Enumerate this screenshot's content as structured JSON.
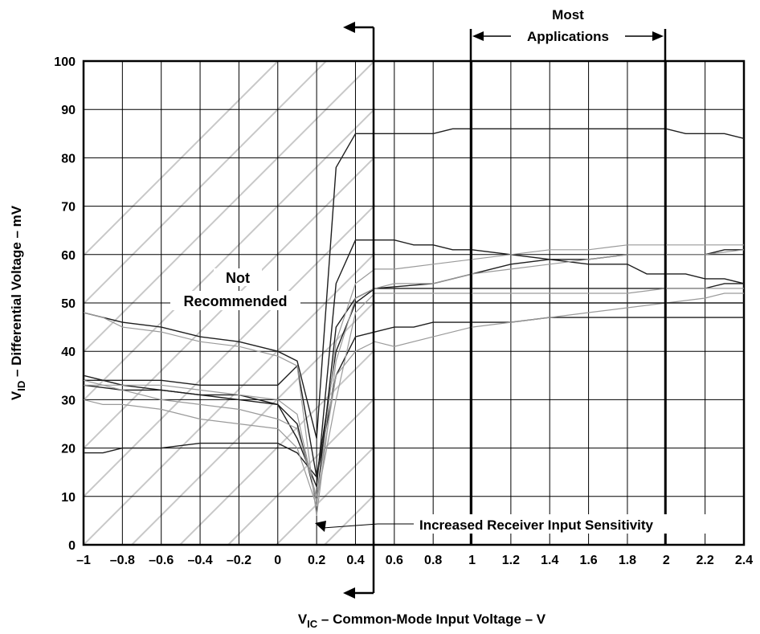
{
  "chart_data": {
    "type": "line",
    "xlabel": {
      "main": "V",
      "sub": "IC",
      "rest": " – Common-Mode Input Voltage – V"
    },
    "ylabel": {
      "main": "V",
      "sub": "ID",
      "rest": " – Differential Voltage – mV"
    },
    "xlim": [
      -1,
      2.4
    ],
    "ylim": [
      0,
      100
    ],
    "x_ticks": [
      -1,
      -0.8,
      -0.6,
      -0.4,
      -0.2,
      0,
      0.2,
      0.4,
      0.6,
      0.8,
      1,
      1.2,
      1.4,
      1.6,
      1.8,
      2,
      2.2,
      2.4
    ],
    "x_tick_labels": [
      "–1",
      "–0.8",
      "–0.6",
      "–0.4",
      "–0.2",
      "0",
      "0.2",
      "0.4",
      "0.6",
      "0.8",
      "1",
      "1.2",
      "1.4",
      "1.6",
      "1.8",
      "2",
      "2.2",
      "2.4"
    ],
    "y_ticks": [
      0,
      10,
      20,
      30,
      40,
      50,
      60,
      70,
      80,
      90,
      100
    ],
    "y_tick_labels": [
      "0",
      "10",
      "20",
      "30",
      "40",
      "50",
      "60",
      "70",
      "80",
      "90",
      "100"
    ],
    "grid": true,
    "annotations": {
      "not_recommended": [
        "Not",
        "Recommended"
      ],
      "most_applications": [
        "Most",
        "Applications"
      ],
      "increased_sensitivity": "Increased Receiver Input Sensitivity"
    },
    "region_boundaries": {
      "not_recommended_edge": 0.5,
      "most_applications": [
        1,
        2
      ]
    },
    "series": [
      {
        "style": "dark",
        "points": [
          [
            -1,
            33
          ],
          [
            -0.8,
            32
          ],
          [
            -0.6,
            32
          ],
          [
            -0.4,
            31
          ],
          [
            -0.2,
            30
          ],
          [
            0,
            29
          ],
          [
            0.1,
            25
          ],
          [
            0.2,
            9
          ],
          [
            0.3,
            45
          ],
          [
            0.4,
            51
          ],
          [
            0.5,
            53
          ],
          [
            0.8,
            54
          ],
          [
            1,
            56
          ],
          [
            1.2,
            58
          ],
          [
            1.4,
            59
          ],
          [
            1.6,
            59
          ],
          [
            1.8,
            60
          ],
          [
            2,
            60
          ],
          [
            2.2,
            60
          ],
          [
            2.3,
            61
          ],
          [
            2.4,
            61
          ]
        ]
      },
      {
        "style": "dark",
        "points": [
          [
            -1,
            35
          ],
          [
            -0.8,
            33
          ],
          [
            -0.6,
            32
          ],
          [
            -0.4,
            31
          ],
          [
            -0.2,
            31
          ],
          [
            0,
            29
          ],
          [
            0.1,
            22
          ],
          [
            0.2,
            12
          ],
          [
            0.3,
            54
          ],
          [
            0.4,
            63
          ],
          [
            0.5,
            63
          ],
          [
            0.6,
            63
          ],
          [
            0.7,
            62
          ],
          [
            0.8,
            62
          ],
          [
            0.9,
            61
          ],
          [
            1,
            61
          ],
          [
            1.2,
            60
          ],
          [
            1.4,
            59
          ],
          [
            1.6,
            58
          ],
          [
            1.8,
            58
          ],
          [
            1.9,
            56
          ],
          [
            2,
            56
          ],
          [
            2.1,
            56
          ],
          [
            2.2,
            55
          ],
          [
            2.3,
            55
          ],
          [
            2.4,
            54
          ]
        ]
      },
      {
        "style": "dark",
        "points": [
          [
            -1,
            48
          ],
          [
            -0.8,
            46
          ],
          [
            -0.6,
            45
          ],
          [
            -0.4,
            43
          ],
          [
            -0.2,
            42
          ],
          [
            0,
            40
          ],
          [
            0.1,
            38
          ],
          [
            0.2,
            22
          ],
          [
            0.3,
            78
          ],
          [
            0.4,
            85
          ],
          [
            0.5,
            85
          ],
          [
            0.6,
            85
          ],
          [
            0.7,
            85
          ],
          [
            0.8,
            85
          ],
          [
            0.9,
            86
          ],
          [
            1,
            86
          ],
          [
            1.2,
            86
          ],
          [
            1.4,
            86
          ],
          [
            1.6,
            86
          ],
          [
            1.8,
            86
          ],
          [
            2,
            86
          ],
          [
            2.1,
            85
          ],
          [
            2.2,
            85
          ],
          [
            2.3,
            85
          ],
          [
            2.4,
            84
          ]
        ]
      },
      {
        "style": "dark",
        "points": [
          [
            -1,
            34
          ],
          [
            -0.8,
            34
          ],
          [
            -0.6,
            34
          ],
          [
            -0.4,
            33
          ],
          [
            -0.2,
            33
          ],
          [
            0,
            33
          ],
          [
            0.1,
            37
          ],
          [
            0.2,
            14
          ],
          [
            0.3,
            40
          ],
          [
            0.4,
            50
          ],
          [
            0.5,
            53
          ],
          [
            0.6,
            53
          ],
          [
            0.8,
            53
          ],
          [
            1,
            53
          ],
          [
            1.2,
            53
          ],
          [
            1.4,
            53
          ],
          [
            1.6,
            53
          ],
          [
            1.8,
            53
          ],
          [
            2,
            53
          ],
          [
            2.2,
            53
          ],
          [
            2.3,
            54
          ],
          [
            2.4,
            54
          ]
        ]
      },
      {
        "style": "dark",
        "points": [
          [
            -1,
            19
          ],
          [
            -0.9,
            19
          ],
          [
            -0.8,
            20
          ],
          [
            -0.6,
            20
          ],
          [
            -0.4,
            21
          ],
          [
            -0.2,
            21
          ],
          [
            0,
            21
          ],
          [
            0.1,
            19
          ],
          [
            0.2,
            14
          ],
          [
            0.3,
            35
          ],
          [
            0.4,
            43
          ],
          [
            0.5,
            44
          ],
          [
            0.6,
            45
          ],
          [
            0.7,
            45
          ],
          [
            0.8,
            46
          ],
          [
            1,
            46
          ],
          [
            1.2,
            46
          ],
          [
            1.4,
            47
          ],
          [
            1.6,
            47
          ],
          [
            1.8,
            47
          ],
          [
            2,
            47
          ],
          [
            2.2,
            47
          ],
          [
            2.4,
            47
          ]
        ]
      },
      {
        "style": "light",
        "points": [
          [
            -1,
            48
          ],
          [
            -0.9,
            47
          ],
          [
            -0.8,
            45
          ],
          [
            -0.6,
            44
          ],
          [
            -0.4,
            42
          ],
          [
            -0.2,
            41
          ],
          [
            0,
            39
          ],
          [
            0.1,
            37
          ],
          [
            0.2,
            6
          ],
          [
            0.3,
            38
          ],
          [
            0.4,
            51
          ],
          [
            0.5,
            53
          ],
          [
            0.6,
            54
          ],
          [
            0.8,
            54
          ],
          [
            1,
            56
          ],
          [
            1.2,
            57
          ],
          [
            1.4,
            58
          ],
          [
            1.6,
            59
          ],
          [
            1.8,
            60
          ],
          [
            2,
            60
          ],
          [
            2.2,
            60
          ],
          [
            2.4,
            61
          ]
        ]
      },
      {
        "style": "light",
        "points": [
          [
            -1,
            30
          ],
          [
            -0.9,
            29
          ],
          [
            -0.8,
            29
          ],
          [
            -0.6,
            28
          ],
          [
            -0.4,
            26
          ],
          [
            -0.2,
            25
          ],
          [
            0,
            24
          ],
          [
            0.1,
            20
          ],
          [
            0.2,
            8
          ],
          [
            0.3,
            42
          ],
          [
            0.4,
            54
          ],
          [
            0.5,
            57
          ],
          [
            0.6,
            57
          ],
          [
            0.8,
            58
          ],
          [
            1,
            59
          ],
          [
            1.2,
            60
          ],
          [
            1.4,
            61
          ],
          [
            1.6,
            61
          ],
          [
            1.8,
            62
          ],
          [
            2,
            62
          ],
          [
            2.2,
            62
          ],
          [
            2.4,
            62
          ]
        ]
      },
      {
        "style": "light",
        "points": [
          [
            -1,
            34
          ],
          [
            -0.8,
            32
          ],
          [
            -0.6,
            30
          ],
          [
            -0.4,
            29
          ],
          [
            -0.2,
            28
          ],
          [
            0,
            26
          ],
          [
            0.1,
            24
          ],
          [
            0.2,
            10
          ],
          [
            0.3,
            35
          ],
          [
            0.4,
            40
          ],
          [
            0.5,
            42
          ],
          [
            0.6,
            41
          ],
          [
            0.8,
            43
          ],
          [
            1,
            45
          ],
          [
            1.2,
            46
          ],
          [
            1.4,
            47
          ],
          [
            1.6,
            48
          ],
          [
            1.8,
            49
          ],
          [
            2,
            50
          ],
          [
            2.2,
            51
          ],
          [
            2.3,
            52
          ],
          [
            2.4,
            52
          ]
        ]
      },
      {
        "style": "light",
        "points": [
          [
            -1,
            33
          ],
          [
            -0.8,
            33
          ],
          [
            -0.6,
            33
          ],
          [
            -0.4,
            32
          ],
          [
            -0.2,
            31
          ],
          [
            0,
            30
          ],
          [
            0.1,
            27
          ],
          [
            0.2,
            9
          ],
          [
            0.3,
            30
          ],
          [
            0.4,
            48
          ],
          [
            0.5,
            52
          ],
          [
            0.6,
            52
          ],
          [
            0.8,
            52
          ],
          [
            1,
            52
          ],
          [
            1.2,
            52
          ],
          [
            1.4,
            52
          ],
          [
            1.6,
            52
          ],
          [
            1.8,
            52
          ],
          [
            2,
            53
          ],
          [
            2.2,
            53
          ],
          [
            2.4,
            53
          ]
        ]
      },
      {
        "style": "dark",
        "points": [
          [
            0.5,
            50
          ],
          [
            0.8,
            50
          ],
          [
            1,
            50
          ],
          [
            1.2,
            50
          ],
          [
            1.4,
            50
          ],
          [
            1.6,
            50
          ],
          [
            1.8,
            50
          ],
          [
            2,
            50
          ],
          [
            2.2,
            50
          ],
          [
            2.4,
            50
          ]
        ]
      }
    ]
  }
}
